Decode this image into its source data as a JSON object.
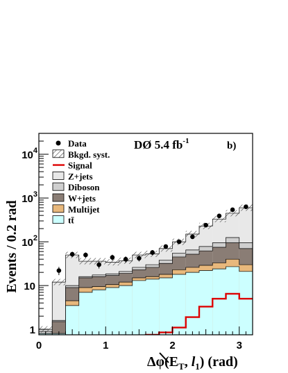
{
  "chart_data": {
    "type": "bar",
    "stacked": true,
    "xlabel": "Δφ(E̸T, l1) (rad)",
    "xlabel_parts": {
      "prefix": "Δφ(",
      "met": "E",
      "met_sub": "T",
      "comma": ", ",
      "lep": "l",
      "lep_sub": "1",
      "suffix": ") (rad)"
    },
    "ylabel": "Events / 0.2 rad",
    "xlim": [
      0,
      3.2
    ],
    "ylim": [
      0.75,
      30000
    ],
    "yscale": "log",
    "x_ticks": [
      "0",
      "1",
      "2",
      "3"
    ],
    "y_ticks": [
      {
        "base": "1",
        "exp": ""
      },
      {
        "base": "10",
        "exp": ""
      },
      {
        "base": "10",
        "exp": "2"
      },
      {
        "base": "10",
        "exp": "3"
      },
      {
        "base": "10",
        "exp": "4"
      }
    ],
    "experiment": {
      "label": "DØ 5.4 fb",
      "exp": "-1"
    },
    "panel_label": "b)",
    "bin_edges": [
      0.0,
      0.2,
      0.4,
      0.6,
      0.8,
      1.0,
      1.2,
      1.4,
      1.6,
      1.8,
      2.0,
      2.2,
      2.4,
      2.6,
      2.8,
      3.0,
      3.2
    ],
    "series": [
      {
        "name": "tt̄",
        "color": "#ccffff",
        "values": [
          0.8,
          0.8,
          3.5,
          7,
          8,
          9,
          10,
          13,
          14,
          15,
          18,
          20,
          22,
          24,
          27,
          21
        ]
      },
      {
        "name": "Multijet",
        "color": "#e8b87c",
        "values": [
          0.8,
          0.8,
          4.5,
          9,
          9.5,
          10.5,
          12,
          15,
          16,
          18,
          23,
          26,
          29,
          33,
          40,
          30
        ]
      },
      {
        "name": "W+jets",
        "color": "#8a7d75",
        "values": [
          0.8,
          1.5,
          9,
          15,
          16,
          17,
          19,
          23,
          26,
          32,
          45,
          52,
          62,
          75,
          95,
          70
        ]
      },
      {
        "name": "Diboson",
        "color": "#cfcfcf",
        "values": [
          0.9,
          1.6,
          10,
          16,
          17.5,
          18.5,
          21,
          26,
          30,
          38,
          55,
          65,
          78,
          95,
          125,
          95
        ]
      },
      {
        "name": "Z+jets",
        "color": "#e8e8e8",
        "values": [
          1.0,
          12,
          50,
          36,
          36,
          34,
          37,
          50,
          53,
          70,
          100,
          150,
          230,
          330,
          450,
          600
        ]
      }
    ],
    "signal": {
      "name": "Signal",
      "color": "#dd0000",
      "values": [
        0.5,
        0.5,
        0.5,
        0.5,
        0.5,
        0.5,
        0.5,
        0.5,
        0.75,
        0.85,
        1.1,
        1.9,
        3.3,
        5.0,
        6.5,
        5.0
      ]
    },
    "data": {
      "name": "Data",
      "x": [
        0.3,
        0.5,
        0.7,
        0.9,
        1.1,
        1.3,
        1.5,
        1.7,
        1.9,
        2.1,
        2.3,
        2.5,
        2.7,
        2.9,
        3.1
      ],
      "y": [
        22,
        52,
        50,
        30,
        44,
        40,
        42,
        57,
        78,
        100,
        130,
        240,
        390,
        540,
        630
      ]
    },
    "bkgd_syst": {
      "name": "Bkgd. syst."
    },
    "legend": [
      "Data",
      "Bkgd. syst.",
      "Signal",
      "Z+jets",
      "Diboson",
      "W+jets",
      "Multijet",
      "tt̄"
    ],
    "legend_placement": "top-left"
  }
}
